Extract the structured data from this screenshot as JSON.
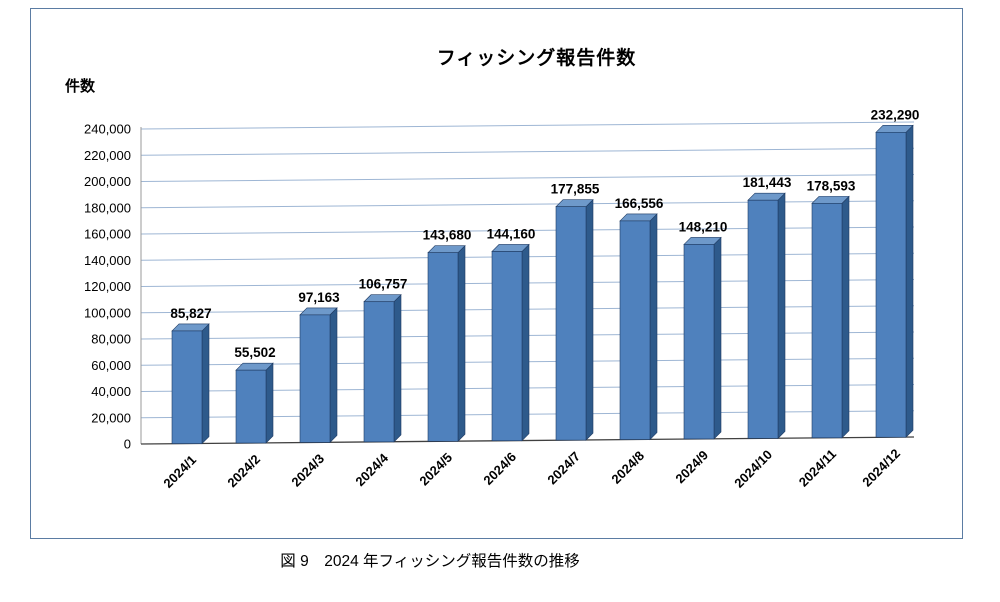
{
  "caption": "図 9　2024 年フィッシング報告件数の推移",
  "chart_data": {
    "type": "bar",
    "title": "フィッシング報告件数",
    "xlabel": "",
    "ylabel": "件数",
    "categories": [
      "2024/1",
      "2024/2",
      "2024/3",
      "2024/4",
      "2024/5",
      "2024/6",
      "2024/7",
      "2024/8",
      "2024/9",
      "2024/10",
      "2024/11",
      "2024/12"
    ],
    "values": [
      85827,
      55502,
      97163,
      106757,
      143680,
      144160,
      177855,
      166556,
      148210,
      181443,
      178593,
      232290
    ],
    "values_formatted": [
      "85,827",
      "55,502",
      "97,163",
      "106,757",
      "143,680",
      "144,160",
      "177,855",
      "166,556",
      "148,210",
      "181,443",
      "178,593",
      "232,290"
    ],
    "ylim": [
      0,
      240000
    ],
    "ytick_step": 20000,
    "ytick_labels": [
      "0",
      "20,000",
      "40,000",
      "60,000",
      "80,000",
      "100,000",
      "120,000",
      "140,000",
      "160,000",
      "180,000",
      "200,000",
      "220,000",
      "240,000"
    ],
    "grid": true,
    "legend": "none",
    "style": "3d-column",
    "colors": {
      "bar": "#4F81BD",
      "bar_side": "#2E5A8B",
      "bar_top": "#6E99CA",
      "bar_stroke": "#1F3B63",
      "grid": "#9EB6D4",
      "baseline": "#404040",
      "axis": "#999999",
      "frame_border": "#5b7ca3"
    }
  }
}
